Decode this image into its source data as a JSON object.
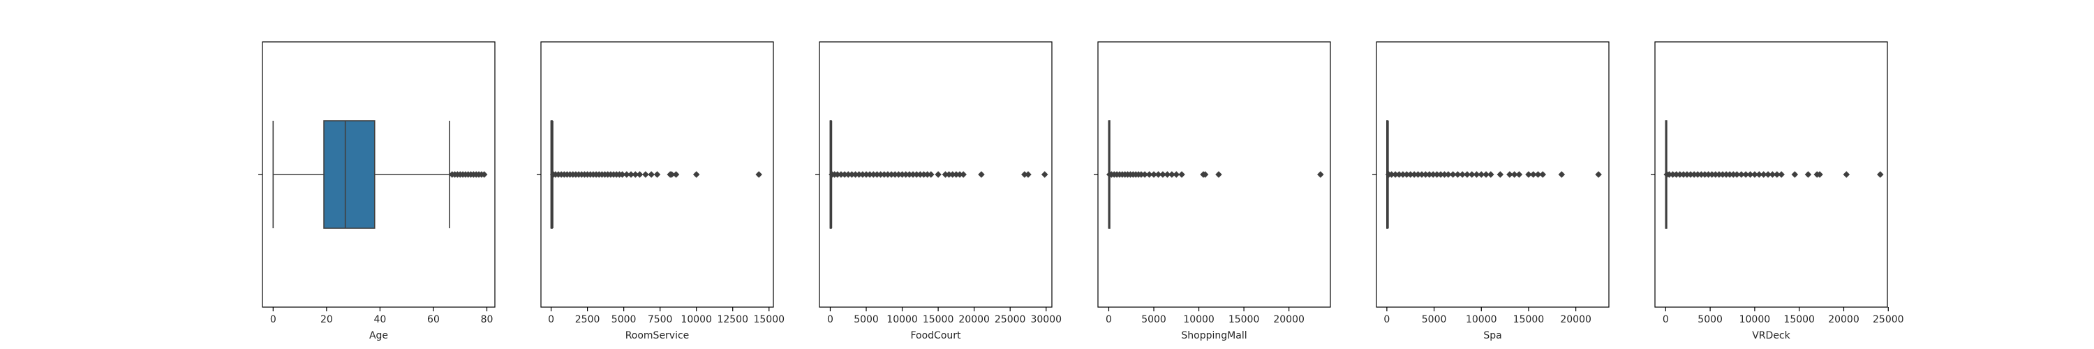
{
  "chart_data": [
    {
      "type": "box",
      "xlabel": "Age",
      "xticks": [
        0,
        20,
        40,
        60,
        80
      ],
      "xtick_labels": [
        "0",
        "20",
        "40",
        "60",
        "80"
      ],
      "xlim": [
        -4,
        83
      ],
      "box": {
        "min": 0,
        "q1": 19,
        "median": 27,
        "q3": 38,
        "max": 66
      },
      "fill": "#3274a1",
      "outliers": [
        67,
        68,
        69,
        70,
        71,
        72,
        73,
        74,
        75,
        76,
        77,
        78,
        79
      ]
    },
    {
      "type": "box",
      "xlabel": "RoomService",
      "xticks": [
        0,
        2500,
        5000,
        7500,
        10000,
        12500,
        15000
      ],
      "xtick_labels": [
        "0",
        "2500",
        "5000",
        "7500",
        "10000",
        "12500",
        "15000"
      ],
      "xlim": [
        -700,
        15300
      ],
      "box": {
        "min": 0,
        "q1": 0,
        "median": 0,
        "q3": 47,
        "max": 118
      },
      "fill": "#3274a1",
      "outliers": [
        150,
        300,
        500,
        700,
        900,
        1100,
        1300,
        1500,
        1700,
        1900,
        2100,
        2300,
        2500,
        2700,
        2900,
        3100,
        3300,
        3500,
        3700,
        3900,
        4100,
        4300,
        4500,
        4700,
        4900,
        5200,
        5500,
        5800,
        6100,
        6500,
        6900,
        7300,
        8200,
        8300,
        8600,
        10000,
        14300
      ]
    },
    {
      "type": "box",
      "xlabel": "FoodCourt",
      "xticks": [
        0,
        5000,
        10000,
        15000,
        20000,
        25000,
        30000
      ],
      "xtick_labels": [
        "0",
        "5000",
        "10000",
        "15000",
        "20000",
        "25000",
        "30000"
      ],
      "xlim": [
        -1500,
        30800
      ],
      "box": {
        "min": 0,
        "q1": 0,
        "median": 0,
        "q3": 76,
        "max": 190
      },
      "fill": "#3274a1",
      "outliers": [
        250,
        600,
        1000,
        1500,
        2000,
        2500,
        3000,
        3500,
        4000,
        4500,
        5000,
        5500,
        6000,
        6500,
        7000,
        7500,
        8000,
        8500,
        9000,
        9500,
        10000,
        10500,
        11000,
        11500,
        12000,
        12500,
        13000,
        13500,
        14000,
        15000,
        16000,
        16500,
        17000,
        17500,
        18000,
        18500,
        21000,
        27000,
        27500,
        29800
      ]
    },
    {
      "type": "box",
      "xlabel": "ShoppingMall",
      "xticks": [
        0,
        5000,
        10000,
        15000,
        20000
      ],
      "xtick_labels": [
        "0",
        "5000",
        "10000",
        "15000",
        "20000"
      ],
      "xlim": [
        -1200,
        24600
      ],
      "box": {
        "min": 0,
        "q1": 0,
        "median": 0,
        "q3": 27,
        "max": 67
      },
      "fill": "#3274a1",
      "outliers": [
        100,
        300,
        600,
        900,
        1200,
        1500,
        1800,
        2100,
        2400,
        2700,
        3000,
        3300,
        3600,
        4000,
        4500,
        5000,
        5500,
        6000,
        6500,
        7000,
        7500,
        8100,
        10500,
        10700,
        12200,
        23500
      ]
    },
    {
      "type": "box",
      "xlabel": "Spa",
      "xticks": [
        0,
        5000,
        10000,
        15000,
        20000
      ],
      "xtick_labels": [
        "0",
        "5000",
        "10000",
        "15000",
        "20000"
      ],
      "xlim": [
        -1100,
        23500
      ],
      "box": {
        "min": 0,
        "q1": 0,
        "median": 0,
        "q3": 59,
        "max": 147
      },
      "fill": "#3274a1",
      "outliers": [
        200,
        500,
        900,
        1300,
        1700,
        2100,
        2500,
        2900,
        3300,
        3700,
        4100,
        4500,
        4900,
        5300,
        5700,
        6100,
        6500,
        7000,
        7500,
        8000,
        8500,
        9000,
        9500,
        10000,
        10500,
        11000,
        12000,
        13000,
        13500,
        14000,
        15000,
        15500,
        16000,
        16500,
        18500,
        22400
      ]
    },
    {
      "type": "box",
      "xlabel": "VRDeck",
      "xticks": [
        0,
        5000,
        10000,
        15000,
        20000,
        25000
      ],
      "xtick_labels": [
        "0",
        "5000",
        "10000",
        "15000",
        "20000",
        "25000"
      ],
      "xlim": [
        -1200,
        24900
      ],
      "box": {
        "min": 0,
        "q1": 0,
        "median": 0,
        "q3": 46,
        "max": 115
      },
      "fill": "#3274a1",
      "outliers": [
        150,
        400,
        800,
        1200,
        1600,
        2000,
        2400,
        2800,
        3200,
        3600,
        4000,
        4400,
        4800,
        5200,
        5600,
        6000,
        6400,
        6800,
        7200,
        7600,
        8000,
        8500,
        9000,
        9500,
        10000,
        10500,
        11000,
        11500,
        12000,
        12500,
        13000,
        14500,
        16000,
        17000,
        17300,
        20300,
        24100
      ]
    }
  ],
  "colors": {
    "box_fill": "#3274a1",
    "lines": "#3f3f3f",
    "frame": "#000000",
    "text": "#262626"
  }
}
